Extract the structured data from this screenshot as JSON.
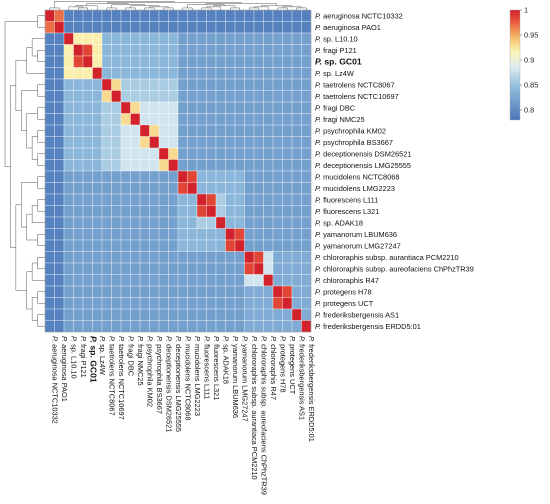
{
  "chart_data": {
    "type": "heatmap",
    "title": "",
    "xlabel": "",
    "ylabel": "",
    "highlighted_label": "P. sp. GC01",
    "labels": [
      {
        "genus": "P.",
        "rest": "aeruginosa NCTC10332"
      },
      {
        "genus": "P.",
        "rest": "aeruginosa PAO1"
      },
      {
        "genus": "P.",
        "rest": "sp. L10.10"
      },
      {
        "genus": "P.",
        "rest": "fragi P121"
      },
      {
        "genus": "P.",
        "rest": "sp. GC01"
      },
      {
        "genus": "P.",
        "rest": "sp. Lz4W"
      },
      {
        "genus": "P.",
        "rest": "taetrolens NCTC8067"
      },
      {
        "genus": "P.",
        "rest": "taetrolens NCTC10697"
      },
      {
        "genus": "P.",
        "rest": "fragi DBC"
      },
      {
        "genus": "P.",
        "rest": "fragi NMC25"
      },
      {
        "genus": "P.",
        "rest": "psychrophila KM02"
      },
      {
        "genus": "P.",
        "rest": "psychrophila BS3667"
      },
      {
        "genus": "P.",
        "rest": "deceptionensis DSM26521"
      },
      {
        "genus": "P.",
        "rest": "deceptionensis LMG25555"
      },
      {
        "genus": "P.",
        "rest": "mucidolens NCTC8068"
      },
      {
        "genus": "P.",
        "rest": "mucidolens LMG2223"
      },
      {
        "genus": "P.",
        "rest": "fluorescens L111"
      },
      {
        "genus": "P.",
        "rest": "fluorescens L321"
      },
      {
        "genus": "P.",
        "rest": "sp. ADAK18"
      },
      {
        "genus": "P.",
        "rest": "yamanorum LBUM636"
      },
      {
        "genus": "P.",
        "rest": "yamanorum LMG27247"
      },
      {
        "genus": "P.",
        "rest": "chlororaphis subsp. aurantiaca PCM2210"
      },
      {
        "genus": "P.",
        "rest": "chlororaphis subsp. aureofaciens ChPhzTR39"
      },
      {
        "genus": "P.",
        "rest": "chlororaphis R47"
      },
      {
        "genus": "P.",
        "rest": "protegens H78"
      },
      {
        "genus": "P.",
        "rest": "protegens UCT"
      },
      {
        "genus": "P.",
        "rest": "frederiksbergensis AS1"
      },
      {
        "genus": "P.",
        "rest": "frederiksbergensis ERDD5:01"
      }
    ],
    "clusters": {
      "aeruginosa": [
        0,
        1
      ],
      "group_fragi": [
        2,
        13
      ],
      "group_fluorescens": [
        14,
        20
      ],
      "group_chlororaphis": [
        21,
        27
      ],
      "pairs": [
        [
          0,
          1
        ],
        [
          2,
          2
        ],
        [
          3,
          4
        ],
        [
          5,
          5
        ],
        [
          6,
          7
        ],
        [
          8,
          9
        ],
        [
          10,
          11
        ],
        [
          12,
          13
        ],
        [
          14,
          15
        ],
        [
          16,
          17
        ],
        [
          18,
          18
        ],
        [
          19,
          20
        ],
        [
          21,
          22
        ],
        [
          23,
          23
        ],
        [
          24,
          25
        ],
        [
          26,
          26
        ],
        [
          27,
          27
        ]
      ]
    },
    "value_levels": {
      "self": 1.0,
      "pair_close": 0.985,
      "fragi_core": 0.92,
      "pair_mid": 0.88,
      "subgroup": 0.86,
      "within_group": 0.84,
      "between_group": 0.82,
      "aeruginosa_vs_rest": 0.79,
      "frederiksbergensis_pair": 0.83,
      "aeruginosa_pair": 0.97
    },
    "colorbar": {
      "min": 0.78,
      "max": 1.0,
      "ticks": [
        "1",
        "0.95",
        "0.9",
        "0.85",
        "0.8"
      ],
      "tick_values": [
        1.0,
        0.95,
        0.9,
        0.85,
        0.8
      ],
      "colors": [
        "#4a76b8",
        "#90bcdd",
        "#dcecf2",
        "#fbf6b6",
        "#f6c26f",
        "#e7553a",
        "#d2222b"
      ]
    }
  }
}
